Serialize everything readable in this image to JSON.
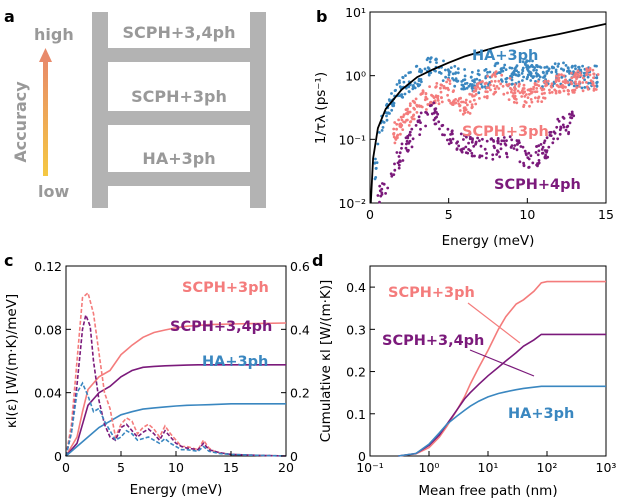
{
  "colors": {
    "scph3": "#f47c7c",
    "scph34": "#7b1a7b",
    "ha3": "#3a87c0",
    "ladder": "#b3b3b3",
    "accuracy": "#999999",
    "envelope": "#000000"
  },
  "panel_a": {
    "letter": "a",
    "high": "high",
    "low": "low",
    "axis_label": "Accuracy",
    "rungs": [
      "SCPH+3,4ph",
      "SCPH+3ph",
      "HA+3ph"
    ]
  },
  "panel_b": {
    "letter": "b"
  },
  "panel_c": {
    "letter": "c"
  },
  "panel_d": {
    "letter": "d"
  },
  "chart_data": [
    {
      "panel": "b",
      "type": "scatter",
      "xlabel": "Energy (meV)",
      "ylabel": "1/τλ (ps⁻¹)",
      "xlim": [
        0,
        15
      ],
      "ylim": [
        0.01,
        10
      ],
      "yscale": "log",
      "xticks": [
        "0",
        "5",
        "10",
        "15"
      ],
      "yticks": [
        "10⁻²",
        "10⁻¹",
        "10⁰",
        "10¹"
      ],
      "labels": [
        "HA+3ph",
        "SCPH+3ph",
        "SCPH+4ph"
      ],
      "series": [
        {
          "name": "HA+3ph",
          "trend": [
            [
              0.3,
              0.03
            ],
            [
              0.8,
              0.2
            ],
            [
              1.5,
              0.5
            ],
            [
              2.5,
              0.8
            ],
            [
              3.5,
              1.2
            ],
            [
              4.2,
              1.6
            ],
            [
              5,
              1.0
            ],
            [
              6,
              0.9
            ],
            [
              7,
              0.8
            ],
            [
              8,
              1.2
            ],
            [
              9,
              0.9
            ],
            [
              10,
              1.3
            ],
            [
              11,
              0.9
            ],
            [
              12,
              1.1
            ],
            [
              13,
              1.0
            ],
            [
              14,
              0.9
            ],
            [
              14.5,
              1.0
            ]
          ]
        },
        {
          "name": "SCPH+3ph",
          "trend": [
            [
              1.5,
              0.12
            ],
            [
              2.2,
              0.2
            ],
            [
              3,
              0.35
            ],
            [
              4,
              0.5
            ],
            [
              5,
              0.6
            ],
            [
              6,
              0.3
            ],
            [
              7,
              0.55
            ],
            [
              8,
              0.8
            ],
            [
              9,
              0.6
            ],
            [
              10,
              0.45
            ],
            [
              11,
              0.6
            ],
            [
              12,
              0.7
            ],
            [
              13,
              0.8
            ],
            [
              14,
              0.9
            ],
            [
              14.5,
              0.7
            ]
          ]
        },
        {
          "name": "SCPH+4ph",
          "trend": [
            [
              0.5,
              0.012
            ],
            [
              1,
              0.02
            ],
            [
              2,
              0.06
            ],
            [
              3,
              0.15
            ],
            [
              4,
              0.3
            ],
            [
              5,
              0.1
            ],
            [
              6,
              0.09
            ],
            [
              7,
              0.07
            ],
            [
              8,
              0.07
            ],
            [
              9,
              0.08
            ],
            [
              10,
              0.05
            ],
            [
              11,
              0.06
            ],
            [
              12,
              0.15
            ],
            [
              13,
              0.2
            ]
          ]
        }
      ],
      "envelope": {
        "x": [
          0.05,
          0.2,
          0.5,
          1,
          2,
          3,
          4,
          5,
          6,
          8,
          10,
          12,
          15
        ],
        "y": [
          0.01,
          0.05,
          0.15,
          0.3,
          0.6,
          0.95,
          1.25,
          1.6,
          2.0,
          2.8,
          3.6,
          4.5,
          6.5
        ]
      }
    },
    {
      "panel": "c",
      "type": "line",
      "xlabel": "Energy (meV)",
      "ylabel": "κl(ε) [W/(m·K)/meV]",
      "xlim": [
        0,
        20
      ],
      "ylim": [
        0,
        0.12
      ],
      "y2lim": [
        0,
        0.6
      ],
      "xticks": [
        "0",
        "5",
        "10",
        "15",
        "20"
      ],
      "yticks": [
        "0",
        "0.04",
        "0.08",
        "0.12"
      ],
      "y2ticks": [
        "0",
        "0.2",
        "0.4",
        "0.6"
      ],
      "series": [
        {
          "name": "SCPH+3ph",
          "kind": "cumulative",
          "x": [
            0,
            1,
            1.5,
            2,
            3,
            4,
            5,
            6,
            7,
            8,
            9,
            10,
            11,
            12,
            13,
            14,
            15,
            17,
            20
          ],
          "y": [
            0,
            0.06,
            0.14,
            0.21,
            0.25,
            0.27,
            0.32,
            0.35,
            0.375,
            0.39,
            0.398,
            0.405,
            0.41,
            0.412,
            0.415,
            0.416,
            0.417,
            0.418,
            0.42
          ]
        },
        {
          "name": "SCPH+3,4ph",
          "kind": "cumulative",
          "x": [
            0,
            1,
            1.5,
            2,
            3,
            4,
            5,
            6,
            7,
            8,
            9,
            10,
            11,
            12,
            13,
            14,
            15,
            17,
            20
          ],
          "y": [
            0,
            0.04,
            0.1,
            0.16,
            0.2,
            0.22,
            0.25,
            0.27,
            0.28,
            0.283,
            0.285,
            0.286,
            0.287,
            0.288,
            0.288,
            0.288,
            0.288,
            0.288,
            0.288
          ]
        },
        {
          "name": "HA+3ph",
          "kind": "cumulative",
          "x": [
            0,
            1,
            2,
            3,
            4,
            5,
            6,
            7,
            8,
            9,
            10,
            11,
            12,
            13,
            15,
            17,
            20
          ],
          "y": [
            0,
            0.03,
            0.06,
            0.09,
            0.11,
            0.13,
            0.14,
            0.148,
            0.152,
            0.155,
            0.158,
            0.16,
            0.161,
            0.162,
            0.165,
            0.165,
            0.165
          ]
        },
        {
          "name": "SCPH+3ph",
          "kind": "spectral",
          "x": [
            0,
            0.5,
            1,
            1.5,
            2,
            2.5,
            3,
            3.5,
            4,
            4.5,
            5,
            5.5,
            6,
            6.5,
            7,
            7.5,
            8,
            8.5,
            9,
            9.5,
            10,
            10.5,
            11,
            11.5,
            12,
            12.5,
            13,
            13.5,
            14,
            15,
            17,
            20
          ],
          "y": [
            0,
            0.02,
            0.06,
            0.1,
            0.103,
            0.09,
            0.065,
            0.04,
            0.03,
            0.012,
            0.02,
            0.024,
            0.022,
            0.014,
            0.018,
            0.02,
            0.017,
            0.012,
            0.019,
            0.014,
            0.01,
            0.006,
            0.006,
            0.005,
            0.004,
            0.01,
            0.005,
            0.003,
            0.002,
            0.001,
            0.0005,
            0
          ]
        },
        {
          "name": "SCPH+3,4ph",
          "kind": "spectral",
          "x": [
            0,
            0.5,
            1,
            1.5,
            1.8,
            2.2,
            2.5,
            3,
            3.5,
            4,
            4.5,
            5,
            5.5,
            6,
            6.5,
            7,
            7.5,
            8,
            8.5,
            9,
            9.5,
            10,
            10.5,
            11,
            12,
            12.5,
            13,
            14,
            15,
            17,
            20
          ],
          "y": [
            0,
            0.015,
            0.045,
            0.08,
            0.089,
            0.082,
            0.06,
            0.035,
            0.02,
            0.012,
            0.01,
            0.018,
            0.02,
            0.016,
            0.012,
            0.015,
            0.017,
            0.014,
            0.01,
            0.016,
            0.012,
            0.008,
            0.006,
            0.005,
            0.004,
            0.008,
            0.004,
            0.002,
            0.001,
            0.0005,
            0
          ]
        },
        {
          "name": "HA+3ph",
          "kind": "spectral",
          "x": [
            0,
            0.5,
            1,
            1.5,
            2,
            2.5,
            3,
            3.5,
            4,
            4.5,
            5,
            5.5,
            6,
            6.5,
            7,
            7.5,
            8,
            8.5,
            9,
            9.5,
            10,
            10.5,
            11,
            12,
            12.5,
            13,
            14,
            15,
            17,
            20
          ],
          "y": [
            0,
            0.015,
            0.04,
            0.046,
            0.038,
            0.028,
            0.03,
            0.022,
            0.016,
            0.01,
            0.012,
            0.016,
            0.014,
            0.01,
            0.011,
            0.012,
            0.01,
            0.008,
            0.011,
            0.008,
            0.006,
            0.004,
            0.004,
            0.003,
            0.006,
            0.003,
            0.0015,
            0.001,
            0.0005,
            0
          ]
        }
      ],
      "labels": [
        "SCPH+3ph",
        "SCPH+3,4ph",
        "HA+3ph"
      ]
    },
    {
      "panel": "d",
      "type": "line",
      "xlabel": "Mean free path (nm)",
      "ylabel": "Cumulative κl [W/(m·K)]",
      "xscale": "log",
      "xlim": [
        0.1,
        1000
      ],
      "ylim": [
        0,
        0.45
      ],
      "xticks": [
        "10⁻¹",
        "10⁰",
        "10¹",
        "10²",
        "10³"
      ],
      "yticks": [
        "0",
        "0.1",
        "0.2",
        "0.3",
        "0.4"
      ],
      "series": [
        {
          "name": "SCPH+3ph",
          "x": [
            0.3,
            0.6,
            1,
            1.5,
            2,
            3,
            4,
            5,
            7,
            10,
            15,
            20,
            30,
            40,
            60,
            80,
            100,
            1000
          ],
          "y": [
            0,
            0.005,
            0.02,
            0.045,
            0.07,
            0.11,
            0.14,
            0.17,
            0.21,
            0.25,
            0.3,
            0.33,
            0.36,
            0.37,
            0.39,
            0.41,
            0.413,
            0.413
          ]
        },
        {
          "name": "SCPH+3,4ph",
          "x": [
            0.3,
            0.6,
            1,
            1.5,
            2,
            3,
            4,
            5,
            7,
            10,
            15,
            20,
            30,
            40,
            60,
            80,
            100,
            1000
          ],
          "y": [
            0,
            0.006,
            0.025,
            0.05,
            0.075,
            0.11,
            0.135,
            0.15,
            0.17,
            0.19,
            0.21,
            0.225,
            0.245,
            0.26,
            0.275,
            0.288,
            0.288,
            0.288
          ]
        },
        {
          "name": "HA+3ph",
          "x": [
            0.3,
            0.6,
            1,
            1.5,
            2,
            3,
            4,
            5,
            7,
            10,
            15,
            20,
            30,
            40,
            60,
            80,
            100,
            1000
          ],
          "y": [
            0,
            0.006,
            0.028,
            0.055,
            0.075,
            0.095,
            0.108,
            0.118,
            0.13,
            0.14,
            0.148,
            0.152,
            0.157,
            0.16,
            0.163,
            0.165,
            0.165,
            0.165
          ]
        }
      ],
      "labels": [
        "SCPH+3ph",
        "SCPH+3,4ph",
        "HA+3ph"
      ]
    }
  ]
}
